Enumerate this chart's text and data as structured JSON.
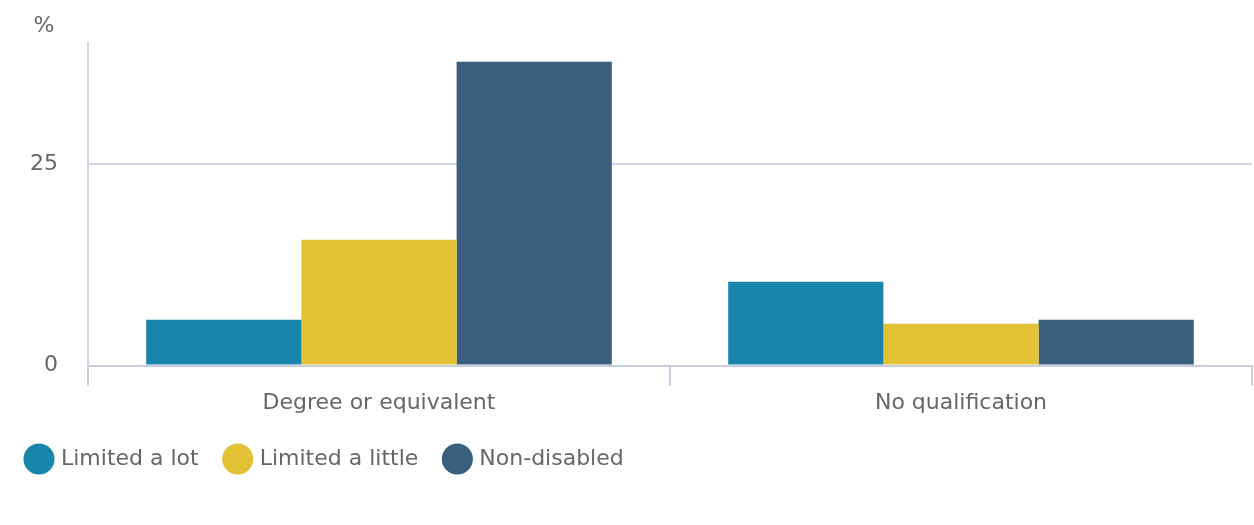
{
  "chart_data": {
    "type": "bar",
    "ylabel": "%",
    "categories": [
      "Degree or equivalent",
      "No qualification"
    ],
    "series": [
      {
        "name": "Limited a lot",
        "color": "#1a85ab",
        "values": [
          5.7,
          10.4
        ]
      },
      {
        "name": "Limited a little",
        "color": "#e2c234",
        "values": [
          15.6,
          5.2
        ]
      },
      {
        "name": "Non-disabled",
        "color": "#3a5e7e",
        "values": [
          37.7,
          5.7
        ]
      }
    ],
    "ylim": [
      0,
      40
    ],
    "yticks": [
      0,
      25
    ],
    "grid": "y",
    "legend": "bottom left"
  }
}
